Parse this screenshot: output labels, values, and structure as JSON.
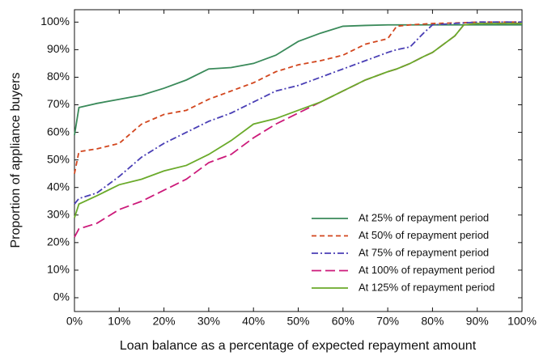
{
  "chart_data": {
    "type": "line",
    "xlabel": "Loan balance as a percentage of expected repayment amount",
    "ylabel": "Proportion of appliance buyers",
    "x": [
      0,
      1,
      5,
      10,
      15,
      20,
      25,
      30,
      35,
      40,
      45,
      50,
      55,
      60,
      65,
      70,
      72,
      75,
      78,
      80,
      85,
      87,
      90,
      100
    ],
    "series": [
      {
        "name": "At 25% of repayment period",
        "color": "#3a8a5a",
        "dash": "solid",
        "values": [
          59,
          69,
          70.5,
          72,
          73.5,
          76,
          79,
          83,
          83.5,
          85,
          88,
          93,
          96,
          98.5,
          98.8,
          99,
          99,
          99,
          99,
          99,
          99,
          99,
          99,
          99
        ]
      },
      {
        "name": "At 50% of repayment period",
        "color": "#d2461e",
        "dash": "dashed",
        "values": [
          45,
          53,
          54,
          56,
          63,
          66.5,
          68,
          72,
          75,
          78,
          82,
          84.5,
          86,
          88,
          92,
          94,
          98.5,
          99,
          99.3,
          99.5,
          99.7,
          99.8,
          100,
          100
        ]
      },
      {
        "name": "At 75% of repayment period",
        "color": "#4a3fb5",
        "dash": "dashdot",
        "values": [
          34,
          36,
          38,
          44,
          51,
          56,
          60,
          64,
          67,
          71,
          75,
          77,
          80,
          83,
          86,
          89,
          90,
          91,
          96,
          99,
          99.5,
          99.7,
          100,
          100
        ]
      },
      {
        "name": "At 100% of repayment period",
        "color": "#cc1a7a",
        "dash": "longdash",
        "values": [
          22,
          25,
          27,
          32,
          35,
          39,
          43,
          49,
          52,
          58,
          63,
          67,
          71,
          75,
          79,
          82,
          83,
          85,
          87.5,
          89,
          95,
          99,
          99.5,
          99.5
        ]
      },
      {
        "name": "At 125% of repayment period",
        "color": "#6aaa2a",
        "dash": "solid",
        "values": [
          29,
          34,
          37,
          41,
          43,
          46,
          48,
          52,
          57,
          63,
          65,
          68,
          71,
          75,
          79,
          82,
          83,
          85,
          87.5,
          89,
          95,
          99,
          99.5,
          99.5
        ]
      }
    ],
    "xlim": [
      0,
      100
    ],
    "ylim": [
      -5,
      104.5
    ],
    "xticks": [
      {
        "value": 0,
        "label": "0%"
      },
      {
        "value": 10,
        "label": "10%"
      },
      {
        "value": 20,
        "label": "20%"
      },
      {
        "value": 30,
        "label": "30%"
      },
      {
        "value": 40,
        "label": "40%"
      },
      {
        "value": 50,
        "label": "50%"
      },
      {
        "value": 60,
        "label": "60%"
      },
      {
        "value": 70,
        "label": "70%"
      },
      {
        "value": 80,
        "label": "80%"
      },
      {
        "value": 90,
        "label": "90%"
      },
      {
        "value": 100,
        "label": "100%"
      }
    ],
    "yticks": [
      {
        "value": 0,
        "label": "0%"
      },
      {
        "value": 10,
        "label": "10%"
      },
      {
        "value": 20,
        "label": "20%"
      },
      {
        "value": 30,
        "label": "30%"
      },
      {
        "value": 40,
        "label": "40%"
      },
      {
        "value": 50,
        "label": "50%"
      },
      {
        "value": 60,
        "label": "60%"
      },
      {
        "value": 70,
        "label": "70%"
      },
      {
        "value": 80,
        "label": "80%"
      },
      {
        "value": 90,
        "label": "90%"
      },
      {
        "value": 100,
        "label": "100%"
      }
    ],
    "grid": false,
    "legend": "lower right"
  }
}
